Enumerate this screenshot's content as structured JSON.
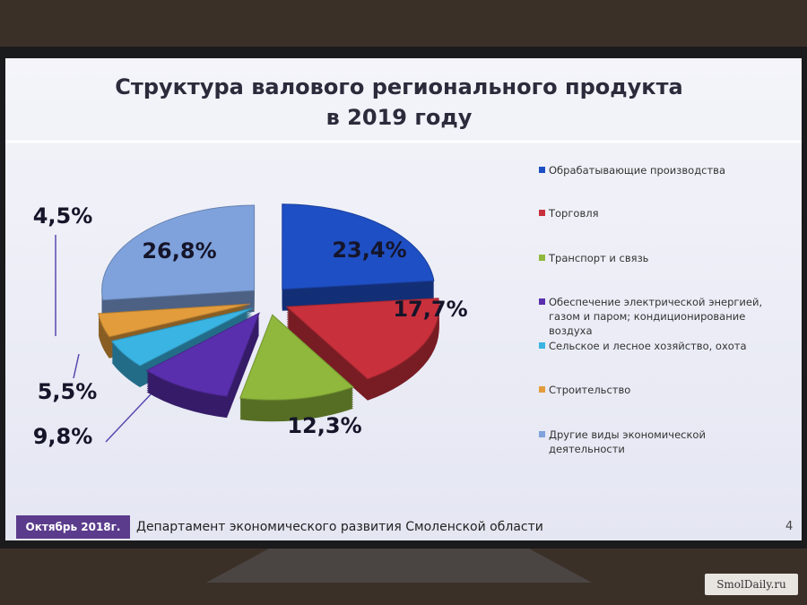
{
  "chart_data": {
    "type": "pie",
    "title": "Структура валового регионального продукта",
    "subtitle": "в 2019 году",
    "categories": [
      "Обрабатывающие производства",
      "Торговля",
      "Транспорт и связь",
      "Обеспечение электрической энергией, газом и паром; кондиционирование воздуха",
      "Сельское и лесное хозяйство, охота",
      "Строительство",
      "Другие виды экономической деятельности"
    ],
    "values": [
      23.4,
      17.7,
      12.3,
      9.8,
      5.5,
      4.5,
      26.8
    ],
    "value_labels": [
      "23,4%",
      "17,7%",
      "12,3%",
      "9,8%",
      "5,5%",
      "4,5%",
      "26,8%"
    ],
    "colors": [
      "#1f4fc4",
      "#c8303c",
      "#8fb83c",
      "#5a2fae",
      "#3ab4e2",
      "#e39c3c",
      "#7fa2dc"
    ],
    "legend": "right"
  },
  "footer": {
    "date": "Октябрь 2018г.",
    "department": "Департамент экономического развития Смоленской области",
    "page": "4"
  },
  "watermark": "SmolDaily.ru"
}
